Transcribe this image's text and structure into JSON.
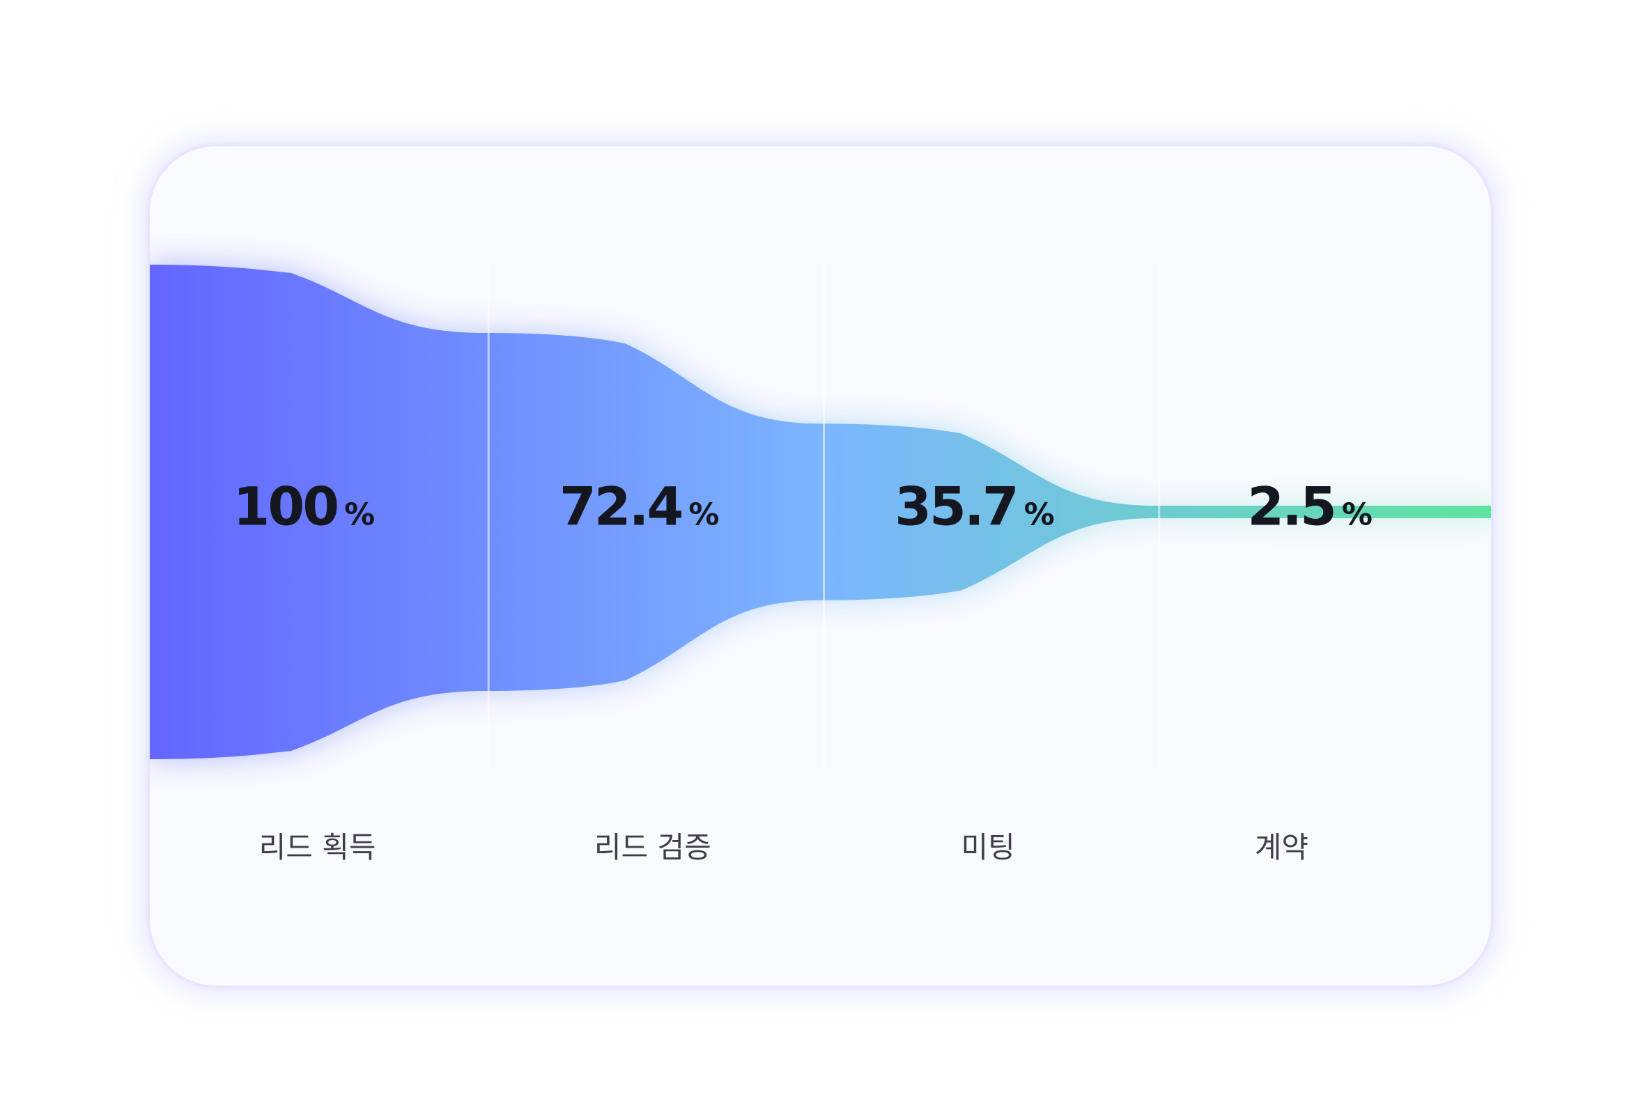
{
  "chart_data": {
    "type": "area",
    "subtype": "funnel",
    "unit": "%",
    "categories": [
      "리드 획득",
      "리드 검증",
      "미팅",
      "계약"
    ],
    "values": [
      100,
      72.4,
      35.7,
      2.5
    ],
    "value_labels": [
      "100",
      "72.4",
      "35.7",
      "2.5"
    ],
    "colors": {
      "start": "#6366ff",
      "mid": "#7cb5ff",
      "end": "#5fe3a1",
      "card_background": "#f9fafe"
    }
  }
}
